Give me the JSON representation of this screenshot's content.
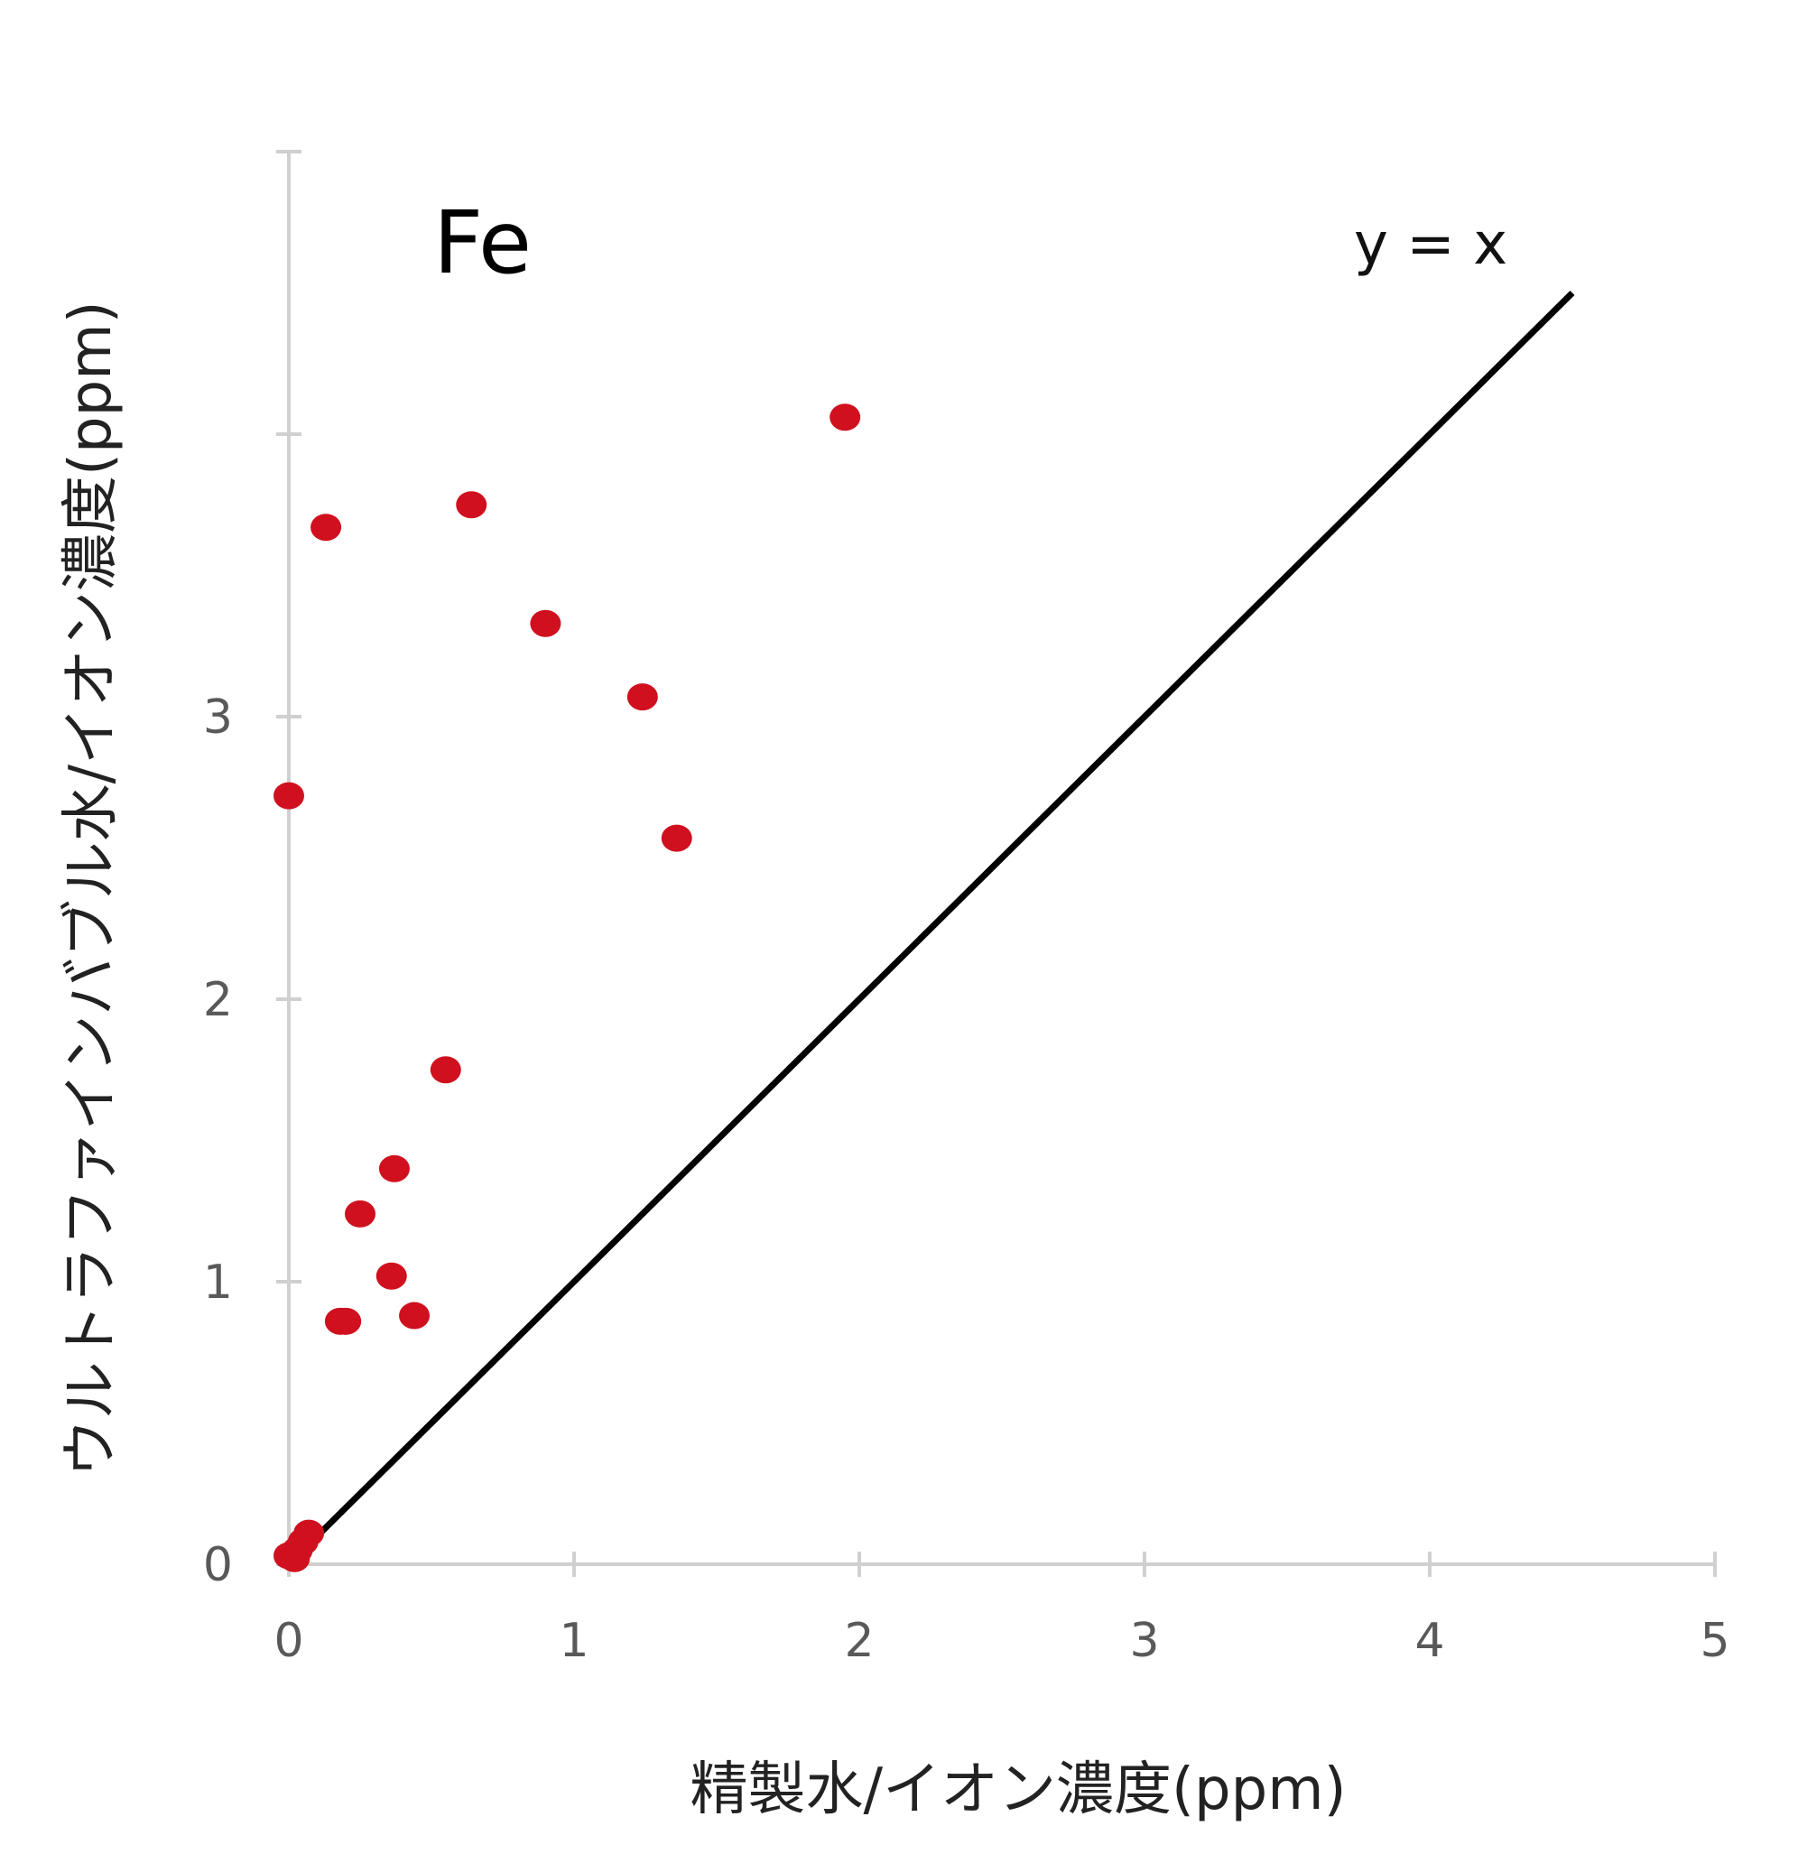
{
  "chart_data": {
    "type": "scatter",
    "title": "",
    "element_label": "Fe",
    "xlabel": "精製水/イオン濃度(ppm)",
    "ylabel": "ウルトラファインバブル水/イオン濃度(ppm)",
    "xlim": [
      0,
      5
    ],
    "ylim": [
      0,
      5
    ],
    "x_ticks": [
      0,
      1,
      2,
      3,
      4,
      5
    ],
    "y_ticks": [
      0,
      1,
      2,
      3
    ],
    "grid": false,
    "reference_line": {
      "label": "y = x",
      "x": [
        0,
        4.5
      ],
      "y": [
        0,
        4.5
      ],
      "color": "#000000"
    },
    "series": [
      {
        "color": "#d0101e",
        "points": [
          {
            "x": 0.0,
            "y": 0.03
          },
          {
            "x": 0.02,
            "y": 0.02
          },
          {
            "x": 0.03,
            "y": 0.05
          },
          {
            "x": 0.05,
            "y": 0.08
          },
          {
            "x": 0.07,
            "y": 0.11
          },
          {
            "x": 0.0,
            "y": 2.72
          },
          {
            "x": 0.13,
            "y": 3.67
          },
          {
            "x": 0.18,
            "y": 0.86
          },
          {
            "x": 0.2,
            "y": 0.86
          },
          {
            "x": 0.25,
            "y": 1.24
          },
          {
            "x": 0.36,
            "y": 1.02
          },
          {
            "x": 0.37,
            "y": 1.4
          },
          {
            "x": 0.44,
            "y": 0.88
          },
          {
            "x": 0.55,
            "y": 1.75
          },
          {
            "x": 0.64,
            "y": 3.75
          },
          {
            "x": 0.9,
            "y": 3.33
          },
          {
            "x": 1.24,
            "y": 3.07
          },
          {
            "x": 1.36,
            "y": 2.57
          },
          {
            "x": 1.95,
            "y": 4.06
          }
        ]
      }
    ]
  }
}
